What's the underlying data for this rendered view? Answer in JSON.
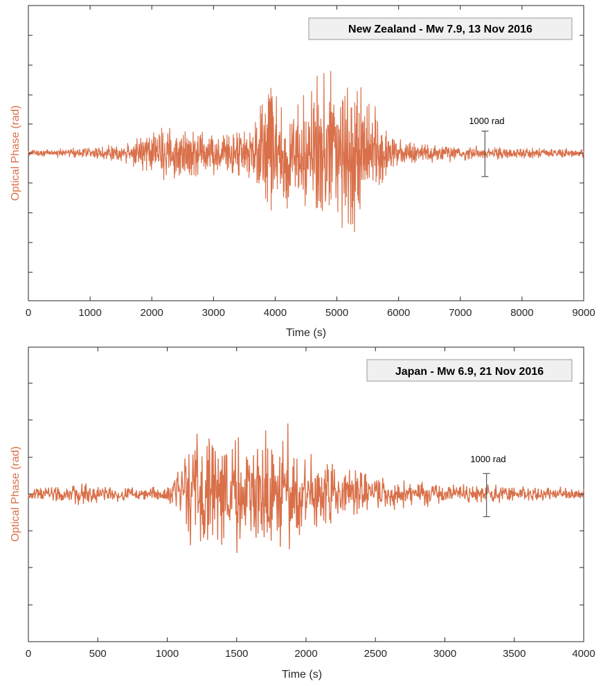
{
  "colors": {
    "signal": "#d9704a",
    "axis": "#262626",
    "scalebar": "#555555",
    "box_fill": "#f0f0f0",
    "box_border": "#999999"
  },
  "chart_data": [
    {
      "type": "line",
      "title": "New Zealand - Mw 7.9, 13 Nov 2016",
      "xlabel": "Time (s)",
      "ylabel": "Optical Phase (rad)",
      "xlim": [
        0,
        9000
      ],
      "xticks": [
        "0",
        "1000",
        "2000",
        "3000",
        "4000",
        "5000",
        "6000",
        "7000",
        "8000",
        "9000"
      ],
      "ylim": [
        -5000,
        5000
      ],
      "grid": false,
      "scale_bar": {
        "label": "1000 rad",
        "x": 7400,
        "value": 1000
      },
      "series": [
        {
          "description": "optical phase trace, envelope amplitude (rad) vs time (s)",
          "x": [
            0,
            1000,
            1500,
            1800,
            2000,
            2200,
            2500,
            2800,
            3000,
            3300,
            3600,
            3800,
            3900,
            4000,
            4200,
            4400,
            4600,
            4800,
            5000,
            5200,
            5400,
            5600,
            5800,
            6000,
            6300,
            6700,
            7000,
            7500,
            8000,
            8500,
            9000
          ],
          "amplitude": [
            150,
            250,
            450,
            750,
            1000,
            1300,
            1100,
            1000,
            900,
            1100,
            1200,
            2800,
            3600,
            2500,
            2400,
            2300,
            3200,
            3400,
            3700,
            3400,
            3000,
            2200,
            1200,
            700,
            500,
            400,
            320,
            300,
            250,
            230,
            200
          ]
        }
      ]
    },
    {
      "type": "line",
      "title": "Japan - Mw 6.9, 21 Nov 2016",
      "xlabel": "Time (s)",
      "ylabel": "Optical Phase (rad)",
      "xlim": [
        0,
        4000
      ],
      "xticks": [
        "0",
        "500",
        "1000",
        "1500",
        "2000",
        "2500",
        "3000",
        "3500",
        "4000"
      ],
      "ylim": [
        -5000,
        5000
      ],
      "grid": false,
      "scale_bar": {
        "label": "1000 rad",
        "x": 3300,
        "value": 1000
      },
      "series": [
        {
          "description": "optical phase trace, envelope amplitude (rad) vs time (s)",
          "x": [
            0,
            200,
            400,
            600,
            800,
            1000,
            1080,
            1150,
            1300,
            1400,
            1500,
            1700,
            1800,
            1850,
            1900,
            2000,
            2200,
            2400,
            2600,
            2800,
            3000,
            3300,
            3600,
            4000
          ],
          "amplitude": [
            250,
            350,
            500,
            350,
            300,
            350,
            1000,
            2300,
            2600,
            2700,
            2800,
            2900,
            3000,
            3200,
            2700,
            2000,
            1400,
            1100,
            700,
            600,
            500,
            450,
            350,
            250
          ]
        }
      ]
    }
  ]
}
